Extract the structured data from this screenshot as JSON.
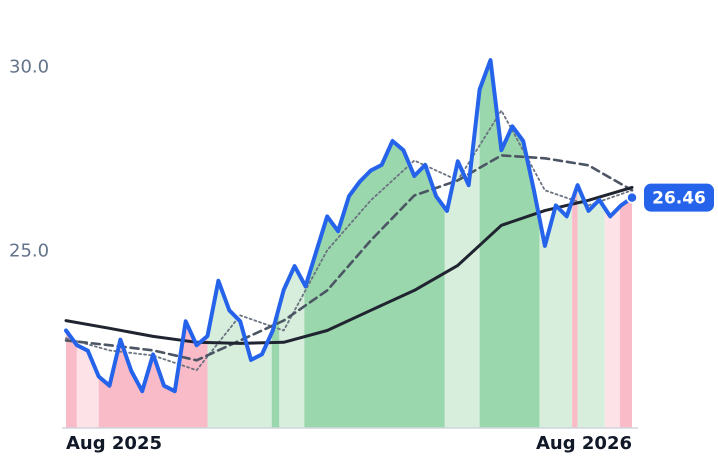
{
  "chart_data": {
    "type": "line",
    "xlim": [
      0,
      52
    ],
    "ylim": [
      20.2,
      30.8
    ],
    "xticks": [
      {
        "value": 0,
        "label": "Aug 2025"
      },
      {
        "value": 52,
        "label": "Aug 2026"
      }
    ],
    "yticks": [
      {
        "value": 25,
        "label": "25.0"
      },
      {
        "value": 30,
        "label": "30.0"
      }
    ],
    "zones": [
      {
        "from": 0,
        "to": 1,
        "color": "#f9b4c2"
      },
      {
        "from": 1,
        "to": 3,
        "color": "#fde0e4"
      },
      {
        "from": 3,
        "to": 13,
        "color": "#f9b4c2"
      },
      {
        "from": 13,
        "to": 18.9,
        "color": "#d3ecd9"
      },
      {
        "from": 18.9,
        "to": 19.6,
        "color": "#8fd3a4"
      },
      {
        "from": 19.6,
        "to": 21.9,
        "color": "#d3ecd9"
      },
      {
        "from": 21.9,
        "to": 34.8,
        "color": "#8fd3a4"
      },
      {
        "from": 34.8,
        "to": 38,
        "color": "#d3ecd9"
      },
      {
        "from": 38,
        "to": 43.5,
        "color": "#8fd3a4"
      },
      {
        "from": 43.5,
        "to": 46.5,
        "color": "#d3ecd9"
      },
      {
        "from": 46.5,
        "to": 47,
        "color": "#f9b4c2"
      },
      {
        "from": 47,
        "to": 49.5,
        "color": "#d3ecd9"
      },
      {
        "from": 49.5,
        "to": 50.9,
        "color": "#fde0e4"
      },
      {
        "from": 50.9,
        "to": 52,
        "color": "#f9b4c2"
      }
    ],
    "series": [
      {
        "style": "dotted",
        "color": "#6b7280",
        "x": [
          0,
          4,
          8,
          12,
          16,
          20,
          24,
          28,
          32,
          36,
          40,
          44,
          48,
          52
        ],
        "values": [
          22.64,
          22.31,
          22.17,
          21.77,
          23.26,
          22.85,
          25.03,
          26.39,
          27.47,
          26.93,
          28.83,
          26.66,
          26.25,
          26.66
        ]
      },
      {
        "style": "dashed",
        "color": "#4b5563",
        "x": [
          0,
          4,
          8,
          12,
          16,
          20,
          24,
          28,
          32,
          36,
          40,
          44,
          48,
          52
        ],
        "values": [
          22.58,
          22.45,
          22.31,
          22.04,
          22.58,
          23.12,
          23.94,
          25.3,
          26.52,
          26.93,
          27.61,
          27.53,
          27.34,
          26.66
        ]
      },
      {
        "style": "solid",
        "color": "#1f2430",
        "x": [
          0,
          4,
          8,
          12,
          16,
          20,
          24,
          28,
          32,
          36,
          40,
          44,
          48,
          52
        ],
        "values": [
          23.12,
          22.91,
          22.69,
          22.53,
          22.5,
          22.53,
          22.85,
          23.4,
          23.94,
          24.62,
          25.71,
          26.11,
          26.39,
          26.74
        ]
      },
      {
        "style": "main",
        "color": "#2563eb",
        "x": [
          0,
          1,
          2,
          3,
          4,
          5,
          6,
          7,
          8,
          9,
          10,
          11,
          12,
          13,
          14,
          15,
          16,
          17,
          18,
          19,
          20,
          21,
          22,
          23,
          24,
          25,
          26,
          27,
          28,
          29,
          30,
          31,
          32,
          33,
          34,
          35,
          36,
          37,
          38,
          39,
          40,
          41,
          42,
          43,
          44,
          45,
          46,
          47,
          48,
          49,
          50,
          51,
          52
        ],
        "values": [
          22.85,
          22.45,
          22.3,
          21.6,
          21.35,
          22.6,
          21.75,
          21.2,
          22.2,
          21.35,
          21.2,
          23.1,
          22.45,
          22.7,
          24.2,
          23.4,
          23.1,
          22.05,
          22.2,
          22.85,
          23.95,
          24.6,
          24.05,
          25.0,
          25.95,
          25.55,
          26.5,
          26.9,
          27.2,
          27.35,
          28.0,
          27.75,
          27.05,
          27.35,
          26.5,
          26.1,
          27.45,
          26.8,
          29.4,
          30.2,
          27.75,
          28.4,
          28.0,
          26.65,
          25.15,
          26.25,
          25.95,
          26.8,
          26.1,
          26.4,
          25.95,
          26.25,
          26.46
        ]
      }
    ]
  }
}
